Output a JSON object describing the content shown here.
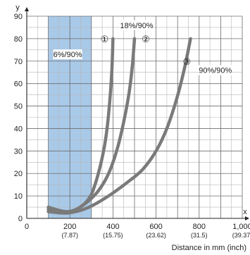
{
  "chart_data": {
    "type": "line",
    "xlabel": "Distance in mm (inch)",
    "ylabel": "y",
    "x_axis_letter": "x",
    "xlim": [
      0,
      1000
    ],
    "ylim": [
      0,
      90
    ],
    "x_ticks": [
      {
        "value": 0,
        "label": "0",
        "sub": ""
      },
      {
        "value": 200,
        "label": "200",
        "sub": "(7.87)"
      },
      {
        "value": 400,
        "label": "400",
        "sub": "(15.75)"
      },
      {
        "value": 600,
        "label": "600",
        "sub": "(23.62)"
      },
      {
        "value": 800,
        "label": "800",
        "sub": "(31.5)"
      },
      {
        "value": 1000,
        "label": "1,000",
        "sub": "(39.37)"
      }
    ],
    "y_ticks": [
      0,
      10,
      20,
      30,
      40,
      50,
      60,
      70,
      80,
      90
    ],
    "grid": true,
    "highlight_band": {
      "x_from": 100,
      "x_to": 300,
      "color": "#a9c9e8"
    },
    "series": [
      {
        "name": "6%/90%",
        "number": "①",
        "color": "#7a7a7a",
        "points": [
          [
            100,
            5
          ],
          [
            180,
            3
          ],
          [
            240,
            4.5
          ],
          [
            290,
            9
          ],
          [
            320,
            16
          ],
          [
            350,
            27
          ],
          [
            370,
            38
          ],
          [
            385,
            52
          ],
          [
            395,
            66
          ],
          [
            400,
            80
          ]
        ]
      },
      {
        "name": "18%/90%",
        "number": "②",
        "color": "#7a7a7a",
        "points": [
          [
            100,
            4
          ],
          [
            150,
            2.5
          ],
          [
            210,
            3.2
          ],
          [
            270,
            6.5
          ],
          [
            330,
            12
          ],
          [
            380,
            20
          ],
          [
            420,
            31
          ],
          [
            450,
            43
          ],
          [
            475,
            56
          ],
          [
            490,
            68
          ],
          [
            500,
            80
          ]
        ]
      },
      {
        "name": "90%/90%",
        "number": "③",
        "color": "#7a7a7a",
        "points": [
          [
            100,
            3
          ],
          [
            190,
            2.4
          ],
          [
            280,
            4.6
          ],
          [
            380,
            10
          ],
          [
            480,
            17
          ],
          [
            540,
            22
          ],
          [
            600,
            30
          ],
          [
            650,
            40
          ],
          [
            695,
            53
          ],
          [
            730,
            66
          ],
          [
            760,
            80
          ]
        ]
      }
    ]
  }
}
